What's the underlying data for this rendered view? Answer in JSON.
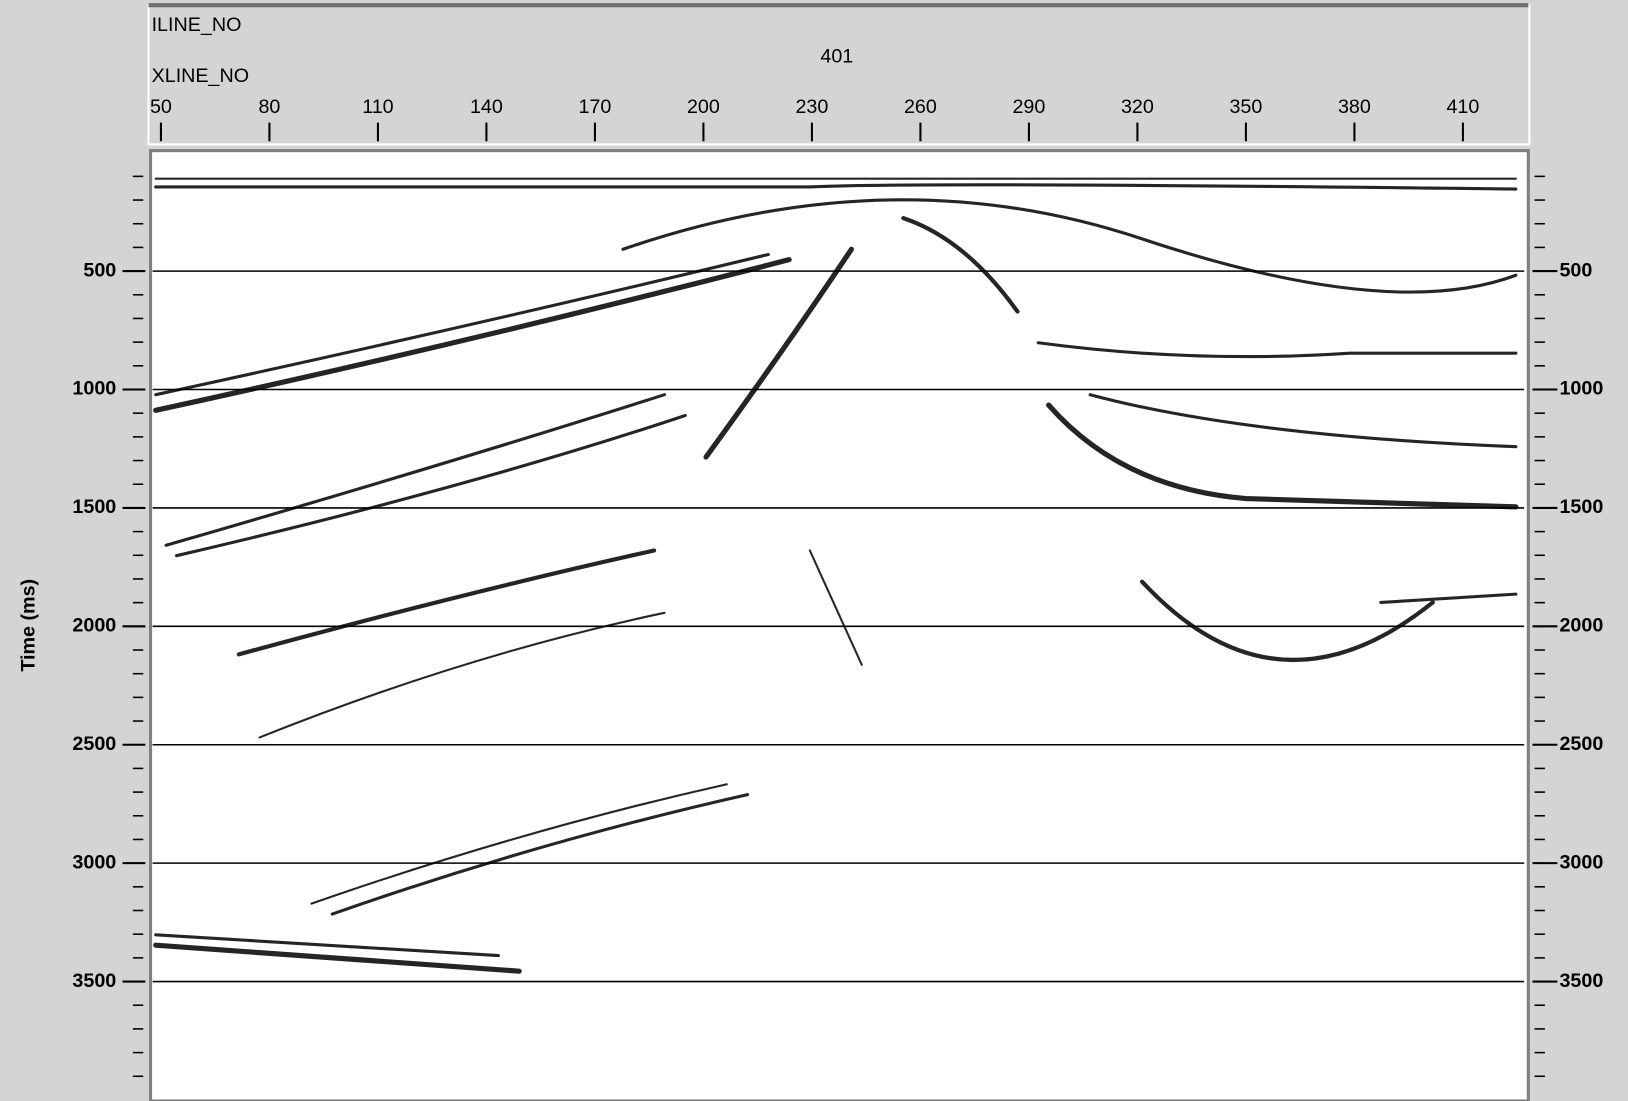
{
  "header": {
    "iline_label": "ILINE_NO",
    "iline_value": 401,
    "xline_label": "XLINE_NO"
  },
  "axes": {
    "y_label": "Time (ms)",
    "xticks": [
      50,
      80,
      110,
      140,
      170,
      200,
      230,
      260,
      290,
      320,
      350,
      380,
      410
    ],
    "yticks": [
      500,
      1000,
      1500,
      2000,
      2500,
      3000,
      3500
    ]
  }
}
